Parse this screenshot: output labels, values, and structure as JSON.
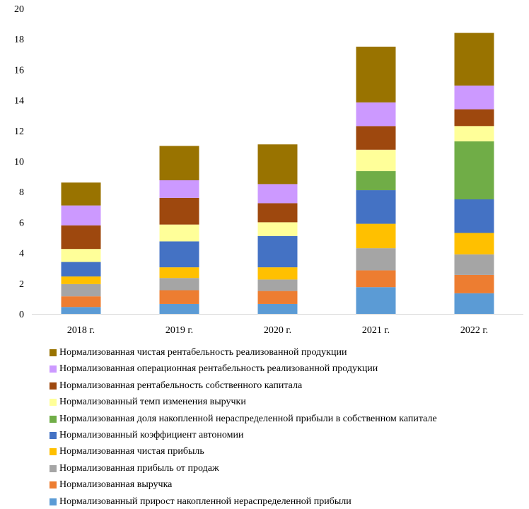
{
  "chart_data": {
    "type": "bar",
    "stacked": true,
    "categories": [
      "2018 г.",
      "2019 г.",
      "2020 г.",
      "2021 г.",
      "2022 г."
    ],
    "ylim": [
      0,
      20
    ],
    "yticks": [
      0,
      2,
      4,
      6,
      8,
      10,
      12,
      14,
      16,
      18,
      20
    ],
    "grid": false,
    "legend_position": "bottom",
    "series": [
      {
        "name": "Нормализованный прирост накопленной нераспределенной прибыли",
        "color": "#5b9bd5",
        "values": [
          0.45,
          0.65,
          0.65,
          1.75,
          1.35
        ]
      },
      {
        "name": "Нормализованная выручка",
        "color": "#ed7d31",
        "values": [
          0.7,
          0.9,
          0.85,
          1.1,
          1.2
        ]
      },
      {
        "name": "Нормализованная прибыль от продаж",
        "color": "#a5a5a5",
        "values": [
          0.8,
          0.8,
          0.75,
          1.45,
          1.35
        ]
      },
      {
        "name": "Нормализованная чистая прибыль",
        "color": "#ffc000",
        "values": [
          0.5,
          0.7,
          0.8,
          1.6,
          1.4
        ]
      },
      {
        "name": "Нормализованный коэффициент автономии",
        "color": "#4472c4",
        "values": [
          0.95,
          1.7,
          2.05,
          2.2,
          2.2
        ]
      },
      {
        "name": "Нормализованная доля накопленной нераспределенной прибыли в собственном капитале",
        "color": "#70ad47",
        "values": [
          0,
          0,
          0,
          1.25,
          3.8
        ]
      },
      {
        "name": "Нормализованный темп изменения выручки",
        "color": "#ffff99",
        "values": [
          0.85,
          1.1,
          0.9,
          1.4,
          1.0
        ]
      },
      {
        "name": "Нормализованная рентабельность собственного капитала",
        "color": "#9e480e",
        "values": [
          1.55,
          1.75,
          1.25,
          1.55,
          1.1
        ]
      },
      {
        "name": "Нормализованная операционная рентабельность реализованной продукции",
        "color": "#cc99ff",
        "values": [
          1.3,
          1.15,
          1.25,
          1.55,
          1.55
        ]
      },
      {
        "name": "Нормализованная чистая рентабельность реализованной продукции",
        "color": "#997300",
        "values": [
          1.5,
          2.25,
          2.6,
          3.65,
          3.45
        ]
      }
    ]
  }
}
